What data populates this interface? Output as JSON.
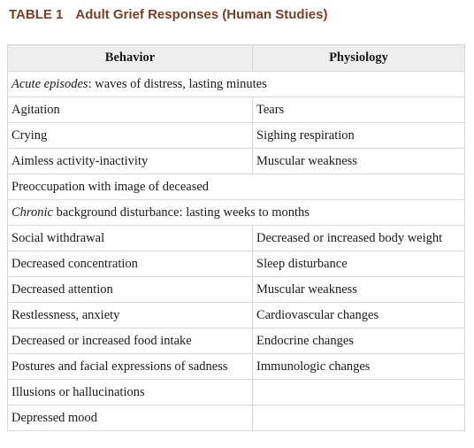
{
  "title": {
    "number": "TABLE 1",
    "text": "Adult Grief Responses (Human Studies)"
  },
  "table": {
    "headers": [
      "Behavior",
      "Physiology"
    ],
    "sections": [
      {
        "heading_em": "Acute episodes",
        "heading_rest": ": waves of distress, lasting minutes",
        "rows": [
          [
            "Agitation",
            "Tears"
          ],
          [
            "Crying",
            "Sighing respiration"
          ],
          [
            "Aimless activity-inactivity",
            "Muscular weakness"
          ],
          [
            "Preoccupation with image of deceased",
            ""
          ]
        ]
      },
      {
        "heading_em": "Chronic",
        "heading_rest": " background disturbance: lasting weeks to months",
        "rows": [
          [
            "Social withdrawal",
            "Decreased or increased body weight"
          ],
          [
            "Decreased concentration",
            "Sleep disturbance"
          ],
          [
            "Decreased attention",
            "Muscular weakness"
          ],
          [
            "Restlessness, anxiety",
            "Cardiovascular changes"
          ],
          [
            "Decreased or increased food intake",
            "Endocrine changes"
          ],
          [
            "Postures and facial expressions of sadness",
            "Immunologic changes"
          ],
          [
            "Illusions or hallucinations",
            ""
          ],
          [
            "Depressed mood",
            ""
          ]
        ]
      }
    ]
  },
  "colors": {
    "title": "#7a3f28",
    "header_bg": "#eeeeee",
    "border": "#d7d7d7"
  }
}
